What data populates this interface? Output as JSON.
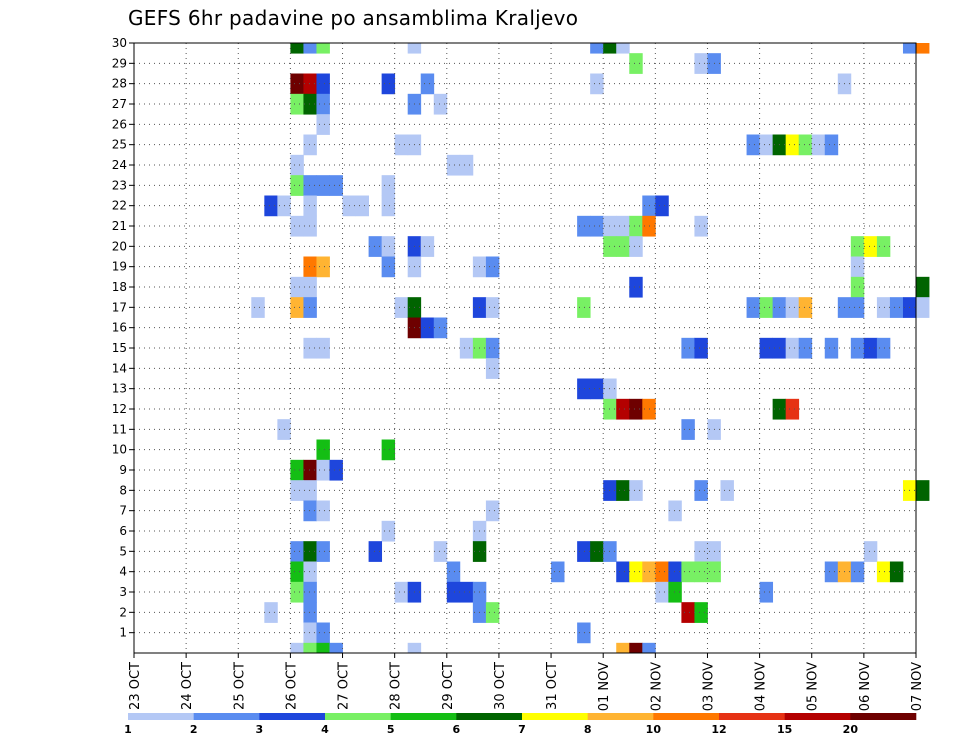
{
  "chart_data": {
    "type": "heatmap",
    "title": "GEFS 6hr padavine po ansamblima Kraljevo",
    "xlabel": "",
    "ylabel": "",
    "x_range": [
      "2015-10-23T00",
      "2015-11-07T00"
    ],
    "x_step_hours": 6,
    "ylim": [
      0,
      30
    ],
    "y_tick_labels": [
      "1",
      "2",
      "3",
      "4",
      "5",
      "6",
      "7",
      "8",
      "9",
      "10",
      "11",
      "12",
      "13",
      "14",
      "15",
      "16",
      "17",
      "18",
      "19",
      "20",
      "21",
      "22",
      "23",
      "24",
      "25",
      "26",
      "27",
      "28",
      "29",
      "30"
    ],
    "x_tick_labels": [
      "23 OCT",
      "24 OCT",
      "25 OCT",
      "26 OCT",
      "27 OCT",
      "28 OCT",
      "29 OCT",
      "30 OCT",
      "31 OCT",
      "01 NOV",
      "02 NOV",
      "03 NOV",
      "04 NOV",
      "05 NOV",
      "06 NOV",
      "07 NOV"
    ],
    "grid": true,
    "legend": {
      "placement": "bottom",
      "labels": [
        "1",
        "2",
        "3",
        "4",
        "5",
        "6",
        "7",
        "8",
        "10",
        "12",
        "15",
        "20"
      ],
      "colors": [
        "#b4c8f5",
        "#5a8cf0",
        "#1e46dc",
        "#78f064",
        "#14be14",
        "#006400",
        "#ffff00",
        "#ffb432",
        "#ff7800",
        "#e63214",
        "#b40000",
        "#6e0000"
      ]
    },
    "cells": [
      {
        "t": "2015-10-26T00",
        "m": 30,
        "lvl": 6
      },
      {
        "t": "2015-10-26T06",
        "m": 30,
        "lvl": 2
      },
      {
        "t": "2015-10-26T12",
        "m": 30,
        "lvl": 4
      },
      {
        "t": "2015-10-28T06",
        "m": 30,
        "lvl": 1
      },
      {
        "t": "2015-10-31T18",
        "m": 30,
        "lvl": 2
      },
      {
        "t": "2015-11-01T00",
        "m": 30,
        "lvl": 6
      },
      {
        "t": "2015-11-01T06",
        "m": 30,
        "lvl": 1
      },
      {
        "t": "2015-11-06T18",
        "m": 30,
        "lvl": 2
      },
      {
        "t": "2015-11-07T00",
        "m": 30,
        "lvl": 9
      },
      {
        "t": "2015-11-01T12",
        "m": 29,
        "lvl": 4
      },
      {
        "t": "2015-11-02T18",
        "m": 29,
        "lvl": 1
      },
      {
        "t": "2015-11-03T00",
        "m": 29,
        "lvl": 2
      },
      {
        "t": "2015-10-26T00",
        "m": 28,
        "lvl": 12
      },
      {
        "t": "2015-10-26T06",
        "m": 28,
        "lvl": 11
      },
      {
        "t": "2015-10-26T12",
        "m": 28,
        "lvl": 3
      },
      {
        "t": "2015-10-27T18",
        "m": 28,
        "lvl": 3
      },
      {
        "t": "2015-10-28T12",
        "m": 28,
        "lvl": 2
      },
      {
        "t": "2015-10-31T18",
        "m": 28,
        "lvl": 1
      },
      {
        "t": "2015-11-05T12",
        "m": 28,
        "lvl": 1
      },
      {
        "t": "2015-10-26T00",
        "m": 27,
        "lvl": 4
      },
      {
        "t": "2015-10-26T06",
        "m": 27,
        "lvl": 6
      },
      {
        "t": "2015-10-26T12",
        "m": 27,
        "lvl": 2
      },
      {
        "t": "2015-10-28T06",
        "m": 27,
        "lvl": 2
      },
      {
        "t": "2015-10-28T18",
        "m": 27,
        "lvl": 1
      },
      {
        "t": "2015-10-26T12",
        "m": 26,
        "lvl": 1
      },
      {
        "t": "2015-10-26T06",
        "m": 25,
        "lvl": 1
      },
      {
        "t": "2015-10-28T00",
        "m": 25,
        "lvl": 1
      },
      {
        "t": "2015-10-28T06",
        "m": 25,
        "lvl": 1
      },
      {
        "t": "2015-11-03T18",
        "m": 25,
        "lvl": 2
      },
      {
        "t": "2015-11-04T00",
        "m": 25,
        "lvl": 1
      },
      {
        "t": "2015-11-04T06",
        "m": 25,
        "lvl": 6
      },
      {
        "t": "2015-11-04T12",
        "m": 25,
        "lvl": 7
      },
      {
        "t": "2015-11-04T18",
        "m": 25,
        "lvl": 4
      },
      {
        "t": "2015-11-05T00",
        "m": 25,
        "lvl": 1
      },
      {
        "t": "2015-11-05T06",
        "m": 25,
        "lvl": 2
      },
      {
        "t": "2015-10-26T00",
        "m": 24,
        "lvl": 1
      },
      {
        "t": "2015-10-29T00",
        "m": 24,
        "lvl": 1
      },
      {
        "t": "2015-10-29T06",
        "m": 24,
        "lvl": 1
      },
      {
        "t": "2015-10-26T00",
        "m": 23,
        "lvl": 4
      },
      {
        "t": "2015-10-26T06",
        "m": 23,
        "lvl": 2
      },
      {
        "t": "2015-10-26T12",
        "m": 23,
        "lvl": 2
      },
      {
        "t": "2015-10-26T18",
        "m": 23,
        "lvl": 2
      },
      {
        "t": "2015-10-27T18",
        "m": 23,
        "lvl": 1
      },
      {
        "t": "2015-10-25T12",
        "m": 22,
        "lvl": 3
      },
      {
        "t": "2015-10-25T18",
        "m": 22,
        "lvl": 1
      },
      {
        "t": "2015-10-26T06",
        "m": 22,
        "lvl": 1
      },
      {
        "t": "2015-10-27T00",
        "m": 22,
        "lvl": 1
      },
      {
        "t": "2015-10-27T06",
        "m": 22,
        "lvl": 1
      },
      {
        "t": "2015-10-27T18",
        "m": 22,
        "lvl": 1
      },
      {
        "t": "2015-11-01T18",
        "m": 22,
        "lvl": 2
      },
      {
        "t": "2015-11-02T00",
        "m": 22,
        "lvl": 3
      },
      {
        "t": "2015-10-26T00",
        "m": 21,
        "lvl": 1
      },
      {
        "t": "2015-10-26T06",
        "m": 21,
        "lvl": 1
      },
      {
        "t": "2015-10-31T12",
        "m": 21,
        "lvl": 2
      },
      {
        "t": "2015-10-31T18",
        "m": 21,
        "lvl": 2
      },
      {
        "t": "2015-11-01T00",
        "m": 21,
        "lvl": 1
      },
      {
        "t": "2015-11-01T06",
        "m": 21,
        "lvl": 1
      },
      {
        "t": "2015-11-01T12",
        "m": 21,
        "lvl": 4
      },
      {
        "t": "2015-11-01T18",
        "m": 21,
        "lvl": 9
      },
      {
        "t": "2015-11-02T18",
        "m": 21,
        "lvl": 1
      },
      {
        "t": "2015-10-27T12",
        "m": 20,
        "lvl": 2
      },
      {
        "t": "2015-10-27T18",
        "m": 20,
        "lvl": 1
      },
      {
        "t": "2015-10-28T06",
        "m": 20,
        "lvl": 3
      },
      {
        "t": "2015-10-28T12",
        "m": 20,
        "lvl": 1
      },
      {
        "t": "2015-11-01T00",
        "m": 20,
        "lvl": 4
      },
      {
        "t": "2015-11-01T06",
        "m": 20,
        "lvl": 4
      },
      {
        "t": "2015-11-01T12",
        "m": 20,
        "lvl": 1
      },
      {
        "t": "2015-11-05T18",
        "m": 20,
        "lvl": 4
      },
      {
        "t": "2015-11-06T00",
        "m": 20,
        "lvl": 7
      },
      {
        "t": "2015-11-06T06",
        "m": 20,
        "lvl": 4
      },
      {
        "t": "2015-10-26T06",
        "m": 19,
        "lvl": 9
      },
      {
        "t": "2015-10-26T12",
        "m": 19,
        "lvl": 8
      },
      {
        "t": "2015-10-27T18",
        "m": 19,
        "lvl": 2
      },
      {
        "t": "2015-10-28T06",
        "m": 19,
        "lvl": 1
      },
      {
        "t": "2015-10-29T12",
        "m": 19,
        "lvl": 1
      },
      {
        "t": "2015-10-29T18",
        "m": 19,
        "lvl": 2
      },
      {
        "t": "2015-11-05T18",
        "m": 19,
        "lvl": 1
      },
      {
        "t": "2015-10-26T00",
        "m": 18,
        "lvl": 1
      },
      {
        "t": "2015-10-26T06",
        "m": 18,
        "lvl": 1
      },
      {
        "t": "2015-11-01T12",
        "m": 18,
        "lvl": 3
      },
      {
        "t": "2015-11-05T18",
        "m": 18,
        "lvl": 4
      },
      {
        "t": "2015-11-07T00",
        "m": 18,
        "lvl": 6
      },
      {
        "t": "2015-10-25T06",
        "m": 17,
        "lvl": 1
      },
      {
        "t": "2015-10-26T00",
        "m": 17,
        "lvl": 8
      },
      {
        "t": "2015-10-26T06",
        "m": 17,
        "lvl": 2
      },
      {
        "t": "2015-10-28T00",
        "m": 17,
        "lvl": 1
      },
      {
        "t": "2015-10-28T06",
        "m": 17,
        "lvl": 6
      },
      {
        "t": "2015-10-29T12",
        "m": 17,
        "lvl": 3
      },
      {
        "t": "2015-10-29T18",
        "m": 17,
        "lvl": 1
      },
      {
        "t": "2015-10-31T12",
        "m": 17,
        "lvl": 4
      },
      {
        "t": "2015-11-03T18",
        "m": 17,
        "lvl": 2
      },
      {
        "t": "2015-11-04T00",
        "m": 17,
        "lvl": 4
      },
      {
        "t": "2015-11-04T06",
        "m": 17,
        "lvl": 2
      },
      {
        "t": "2015-11-04T12",
        "m": 17,
        "lvl": 1
      },
      {
        "t": "2015-11-04T18",
        "m": 17,
        "lvl": 8
      },
      {
        "t": "2015-11-05T12",
        "m": 17,
        "lvl": 2
      },
      {
        "t": "2015-11-05T18",
        "m": 17,
        "lvl": 2
      },
      {
        "t": "2015-11-06T06",
        "m": 17,
        "lvl": 1
      },
      {
        "t": "2015-11-06T12",
        "m": 17,
        "lvl": 2
      },
      {
        "t": "2015-11-06T18",
        "m": 17,
        "lvl": 3
      },
      {
        "t": "2015-11-07T00",
        "m": 17,
        "lvl": 1
      },
      {
        "t": "2015-10-28T06",
        "m": 16,
        "lvl": 12
      },
      {
        "t": "2015-10-28T12",
        "m": 16,
        "lvl": 3
      },
      {
        "t": "2015-10-28T18",
        "m": 16,
        "lvl": 2
      },
      {
        "t": "2015-10-26T06",
        "m": 15,
        "lvl": 1
      },
      {
        "t": "2015-10-26T12",
        "m": 15,
        "lvl": 1
      },
      {
        "t": "2015-10-29T06",
        "m": 15,
        "lvl": 1
      },
      {
        "t": "2015-10-29T12",
        "m": 15,
        "lvl": 4
      },
      {
        "t": "2015-10-29T18",
        "m": 15,
        "lvl": 2
      },
      {
        "t": "2015-11-02T12",
        "m": 15,
        "lvl": 2
      },
      {
        "t": "2015-11-02T18",
        "m": 15,
        "lvl": 3
      },
      {
        "t": "2015-11-04T00",
        "m": 15,
        "lvl": 3
      },
      {
        "t": "2015-11-04T06",
        "m": 15,
        "lvl": 3
      },
      {
        "t": "2015-11-04T12",
        "m": 15,
        "lvl": 1
      },
      {
        "t": "2015-11-04T18",
        "m": 15,
        "lvl": 2
      },
      {
        "t": "2015-11-05T06",
        "m": 15,
        "lvl": 2
      },
      {
        "t": "2015-11-05T18",
        "m": 15,
        "lvl": 2
      },
      {
        "t": "2015-11-06T00",
        "m": 15,
        "lvl": 3
      },
      {
        "t": "2015-11-06T06",
        "m": 15,
        "lvl": 2
      },
      {
        "t": "2015-10-29T18",
        "m": 14,
        "lvl": 1
      },
      {
        "t": "2015-10-31T12",
        "m": 13,
        "lvl": 3
      },
      {
        "t": "2015-10-31T18",
        "m": 13,
        "lvl": 3
      },
      {
        "t": "2015-11-01T00",
        "m": 13,
        "lvl": 1
      },
      {
        "t": "2015-11-01T00",
        "m": 12,
        "lvl": 4
      },
      {
        "t": "2015-11-01T06",
        "m": 12,
        "lvl": 11
      },
      {
        "t": "2015-11-01T12",
        "m": 12,
        "lvl": 12
      },
      {
        "t": "2015-11-01T18",
        "m": 12,
        "lvl": 9
      },
      {
        "t": "2015-11-04T06",
        "m": 12,
        "lvl": 6
      },
      {
        "t": "2015-11-04T12",
        "m": 12,
        "lvl": 10
      },
      {
        "t": "2015-10-25T18",
        "m": 11,
        "lvl": 1
      },
      {
        "t": "2015-11-02T12",
        "m": 11,
        "lvl": 2
      },
      {
        "t": "2015-11-03T00",
        "m": 11,
        "lvl": 1
      },
      {
        "t": "2015-10-26T12",
        "m": 10,
        "lvl": 5
      },
      {
        "t": "2015-10-27T18",
        "m": 10,
        "lvl": 5
      },
      {
        "t": "2015-10-26T00",
        "m": 9,
        "lvl": 5
      },
      {
        "t": "2015-10-26T06",
        "m": 9,
        "lvl": 12
      },
      {
        "t": "2015-10-26T12",
        "m": 9,
        "lvl": 1
      },
      {
        "t": "2015-10-26T18",
        "m": 9,
        "lvl": 3
      },
      {
        "t": "2015-10-26T00",
        "m": 8,
        "lvl": 1
      },
      {
        "t": "2015-10-26T06",
        "m": 8,
        "lvl": 1
      },
      {
        "t": "2015-11-01T00",
        "m": 8,
        "lvl": 3
      },
      {
        "t": "2015-11-01T06",
        "m": 8,
        "lvl": 6
      },
      {
        "t": "2015-11-01T12",
        "m": 8,
        "lvl": 1
      },
      {
        "t": "2015-11-02T18",
        "m": 8,
        "lvl": 2
      },
      {
        "t": "2015-11-03T06",
        "m": 8,
        "lvl": 1
      },
      {
        "t": "2015-11-06T18",
        "m": 8,
        "lvl": 7
      },
      {
        "t": "2015-11-07T00",
        "m": 8,
        "lvl": 6
      },
      {
        "t": "2015-10-26T06",
        "m": 7,
        "lvl": 2
      },
      {
        "t": "2015-10-26T12",
        "m": 7,
        "lvl": 1
      },
      {
        "t": "2015-10-29T18",
        "m": 7,
        "lvl": 1
      },
      {
        "t": "2015-11-02T06",
        "m": 7,
        "lvl": 1
      },
      {
        "t": "2015-10-27T18",
        "m": 6,
        "lvl": 1
      },
      {
        "t": "2015-10-29T12",
        "m": 6,
        "lvl": 1
      },
      {
        "t": "2015-10-26T00",
        "m": 5,
        "lvl": 2
      },
      {
        "t": "2015-10-26T06",
        "m": 5,
        "lvl": 6
      },
      {
        "t": "2015-10-26T12",
        "m": 5,
        "lvl": 2
      },
      {
        "t": "2015-10-27T12",
        "m": 5,
        "lvl": 3
      },
      {
        "t": "2015-10-28T18",
        "m": 5,
        "lvl": 1
      },
      {
        "t": "2015-10-29T12",
        "m": 5,
        "lvl": 6
      },
      {
        "t": "2015-10-31T12",
        "m": 5,
        "lvl": 3
      },
      {
        "t": "2015-10-31T18",
        "m": 5,
        "lvl": 6
      },
      {
        "t": "2015-11-01T00",
        "m": 5,
        "lvl": 2
      },
      {
        "t": "2015-11-02T18",
        "m": 5,
        "lvl": 1
      },
      {
        "t": "2015-11-03T00",
        "m": 5,
        "lvl": 1
      },
      {
        "t": "2015-11-06T00",
        "m": 5,
        "lvl": 1
      },
      {
        "t": "2015-10-26T00",
        "m": 4,
        "lvl": 5
      },
      {
        "t": "2015-10-26T06",
        "m": 4,
        "lvl": 1
      },
      {
        "t": "2015-10-29T00",
        "m": 4,
        "lvl": 2
      },
      {
        "t": "2015-10-31T00",
        "m": 4,
        "lvl": 2
      },
      {
        "t": "2015-11-01T06",
        "m": 4,
        "lvl": 3
      },
      {
        "t": "2015-11-01T12",
        "m": 4,
        "lvl": 7
      },
      {
        "t": "2015-11-01T18",
        "m": 4,
        "lvl": 8
      },
      {
        "t": "2015-11-02T00",
        "m": 4,
        "lvl": 9
      },
      {
        "t": "2015-11-02T06",
        "m": 4,
        "lvl": 3
      },
      {
        "t": "2015-11-02T12",
        "m": 4,
        "lvl": 4
      },
      {
        "t": "2015-11-02T18",
        "m": 4,
        "lvl": 4
      },
      {
        "t": "2015-11-03T00",
        "m": 4,
        "lvl": 4
      },
      {
        "t": "2015-11-05T06",
        "m": 4,
        "lvl": 2
      },
      {
        "t": "2015-11-05T12",
        "m": 4,
        "lvl": 8
      },
      {
        "t": "2015-11-05T18",
        "m": 4,
        "lvl": 2
      },
      {
        "t": "2015-11-06T06",
        "m": 4,
        "lvl": 7
      },
      {
        "t": "2015-11-06T12",
        "m": 4,
        "lvl": 6
      },
      {
        "t": "2015-10-26T00",
        "m": 3,
        "lvl": 4
      },
      {
        "t": "2015-10-26T06",
        "m": 3,
        "lvl": 2
      },
      {
        "t": "2015-10-28T00",
        "m": 3,
        "lvl": 1
      },
      {
        "t": "2015-10-28T06",
        "m": 3,
        "lvl": 3
      },
      {
        "t": "2015-10-29T00",
        "m": 3,
        "lvl": 3
      },
      {
        "t": "2015-10-29T06",
        "m": 3,
        "lvl": 3
      },
      {
        "t": "2015-10-29T12",
        "m": 3,
        "lvl": 2
      },
      {
        "t": "2015-11-02T00",
        "m": 3,
        "lvl": 1
      },
      {
        "t": "2015-11-02T06",
        "m": 3,
        "lvl": 5
      },
      {
        "t": "2015-11-04T00",
        "m": 3,
        "lvl": 2
      },
      {
        "t": "2015-10-25T12",
        "m": 2,
        "lvl": 1
      },
      {
        "t": "2015-10-26T06",
        "m": 2,
        "lvl": 2
      },
      {
        "t": "2015-10-29T12",
        "m": 2,
        "lvl": 2
      },
      {
        "t": "2015-10-29T18",
        "m": 2,
        "lvl": 4
      },
      {
        "t": "2015-11-02T12",
        "m": 2,
        "lvl": 11
      },
      {
        "t": "2015-11-02T18",
        "m": 2,
        "lvl": 5
      },
      {
        "t": "2015-10-26T06",
        "m": 1,
        "lvl": 1
      },
      {
        "t": "2015-10-26T12",
        "m": 1,
        "lvl": 2
      },
      {
        "t": "2015-10-31T12",
        "m": 1,
        "lvl": 2
      },
      {
        "t": "2015-10-26T00",
        "m": 0,
        "lvl": 1
      },
      {
        "t": "2015-10-26T06",
        "m": 0,
        "lvl": 4
      },
      {
        "t": "2015-10-26T12",
        "m": 0,
        "lvl": 5
      },
      {
        "t": "2015-10-26T18",
        "m": 0,
        "lvl": 2
      },
      {
        "t": "2015-10-28T06",
        "m": 0,
        "lvl": 1
      },
      {
        "t": "2015-11-01T06",
        "m": 0,
        "lvl": 8
      },
      {
        "t": "2015-11-01T12",
        "m": 0,
        "lvl": 12
      },
      {
        "t": "2015-11-01T18",
        "m": 0,
        "lvl": 2
      }
    ]
  }
}
